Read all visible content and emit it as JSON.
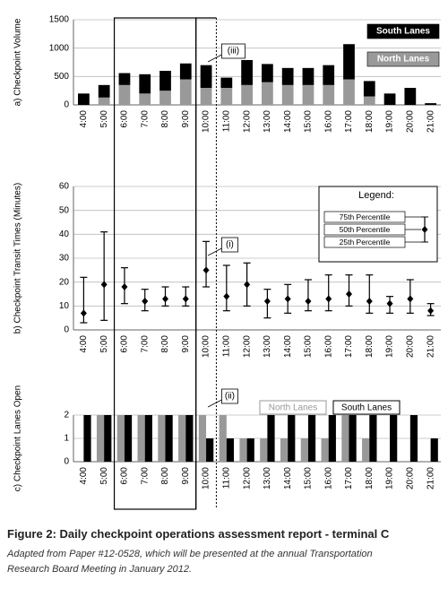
{
  "chart_data": [
    {
      "type": "bar",
      "stacked": true,
      "y_label": "a) Checkpoint Volume",
      "annotation": "(iii)",
      "categories": [
        "4:00",
        "5:00",
        "6:00",
        "7:00",
        "8:00",
        "9:00",
        "10:00",
        "11:00",
        "12:00",
        "13:00",
        "14:00",
        "15:00",
        "16:00",
        "17:00",
        "18:00",
        "19:00",
        "20:00",
        "21:00"
      ],
      "series": [
        {
          "name": "North Lanes",
          "color": "#999999",
          "values": [
            0,
            130,
            350,
            200,
            250,
            450,
            300,
            300,
            350,
            400,
            350,
            350,
            350,
            450,
            150,
            0,
            0,
            0
          ]
        },
        {
          "name": "South Lanes",
          "color": "#000000",
          "values": [
            200,
            220,
            210,
            340,
            350,
            280,
            400,
            180,
            440,
            320,
            300,
            300,
            350,
            620,
            270,
            200,
            300,
            30
          ]
        }
      ],
      "ylim": [
        0,
        1500
      ],
      "yticks": [
        0,
        500,
        1000,
        1500
      ],
      "grid": true
    },
    {
      "type": "errorbar",
      "y_label": "b) Checkpoint Transit Times (Minutes)",
      "annotation": "(i)",
      "legend_title": "Legend:",
      "categories": [
        "4:00",
        "5:00",
        "6:00",
        "7:00",
        "8:00",
        "9:00",
        "10:00",
        "11:00",
        "12:00",
        "13:00",
        "14:00",
        "15:00",
        "16:00",
        "17:00",
        "18:00",
        "19:00",
        "20:00",
        "21:00"
      ],
      "series": [
        {
          "name": "75th Percentile",
          "values": [
            22,
            41,
            26,
            17,
            18,
            18,
            37,
            27,
            28,
            17,
            19,
            21,
            23,
            23,
            23,
            14,
            21,
            11
          ]
        },
        {
          "name": "50th Percentile",
          "values": [
            7,
            19,
            18,
            12,
            13,
            13,
            25,
            14,
            19,
            12,
            13,
            12,
            13,
            15,
            12,
            11,
            13,
            8
          ]
        },
        {
          "name": "25th Percentile",
          "values": [
            3,
            4,
            11,
            8,
            10,
            10,
            18,
            8,
            10,
            5,
            7,
            8,
            8,
            10,
            7,
            7,
            7,
            6
          ]
        }
      ],
      "color": "#000000",
      "ylim": [
        0,
        60
      ],
      "yticks": [
        0,
        10,
        20,
        30,
        40,
        50,
        60
      ],
      "grid": true
    },
    {
      "type": "bar",
      "stacked": false,
      "y_label": "c) Checkpoint Lanes Open",
      "annotation": "(ii)",
      "categories": [
        "4:00",
        "5:00",
        "6:00",
        "7:00",
        "8:00",
        "9:00",
        "10:00",
        "11:00",
        "12:00",
        "13:00",
        "14:00",
        "15:00",
        "16:00",
        "17:00",
        "18:00",
        "19:00",
        "20:00",
        "21:00"
      ],
      "series": [
        {
          "name": "North Lanes",
          "color": "#999999",
          "values": [
            0,
            2,
            2,
            2,
            2,
            2,
            2,
            2,
            1,
            1,
            1,
            1,
            1,
            2,
            1,
            0,
            0,
            0
          ]
        },
        {
          "name": "South Lanes",
          "color": "#000000",
          "values": [
            2,
            2,
            2,
            2,
            2,
            2,
            1,
            1,
            1,
            2,
            2,
            2,
            2,
            2,
            2,
            2,
            2,
            1
          ]
        }
      ],
      "ylim": [
        0,
        2
      ],
      "yticks": [
        0,
        1,
        2
      ],
      "grid": true
    }
  ],
  "caption": {
    "title": "Figure 2: Daily checkpoint operations assessment report - terminal C",
    "note": "Adapted from Paper #12-0528, which will be presented at the annual Transportation Research Board Meeting in January 2012."
  }
}
